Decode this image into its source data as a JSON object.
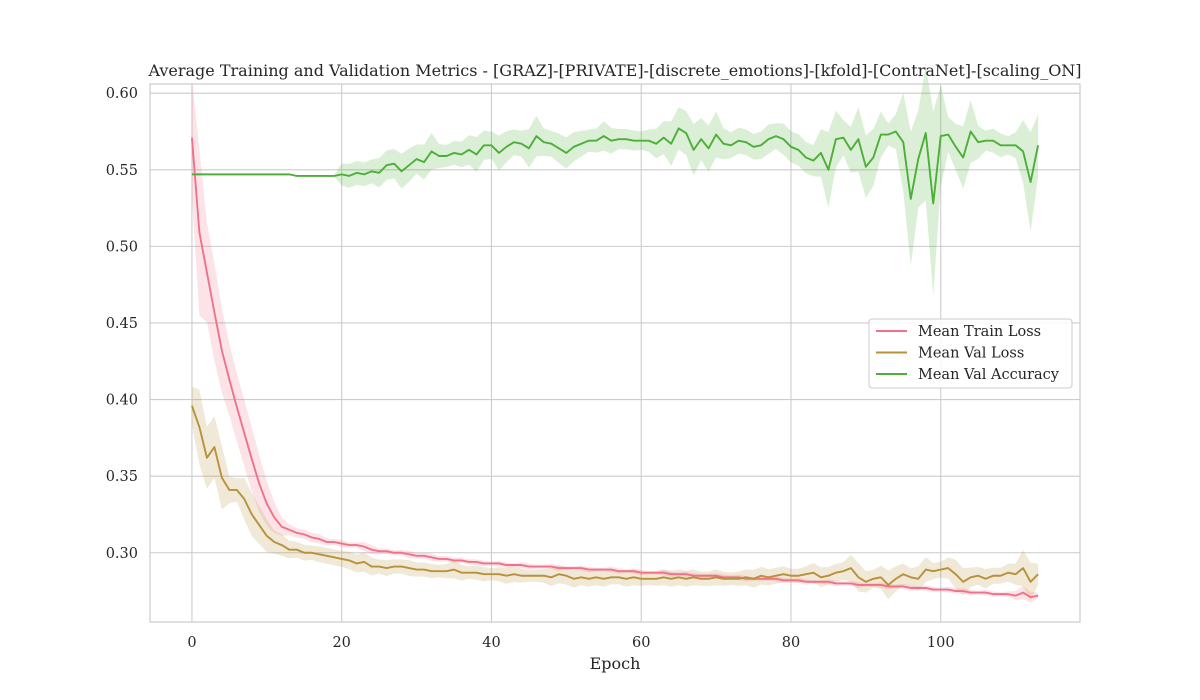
{
  "chart_data": {
    "type": "line",
    "title": "Average Training and Validation Metrics - [GRAZ]-[PRIVATE]-[discrete_emotions]-[kfold]-[ContraNet]-[scaling_ON]",
    "xlabel": "Epoch",
    "ylabel": "",
    "xlim": [
      -5.6,
      118.6
    ],
    "ylim": [
      0.2548,
      0.606
    ],
    "xticks": [
      0,
      20,
      40,
      60,
      80,
      100
    ],
    "yticks": [
      0.3,
      0.35,
      0.4,
      0.45,
      0.5,
      0.55,
      0.6
    ],
    "grid": true,
    "legend_position": "center-right",
    "series": [
      {
        "name": "Mean Train Loss",
        "color": "#f0728a",
        "values": [
          0.571,
          0.509,
          0.483,
          0.457,
          0.432,
          0.413,
          0.395,
          0.378,
          0.361,
          0.345,
          0.332,
          0.323,
          0.317,
          0.315,
          0.313,
          0.312,
          0.31,
          0.309,
          0.307,
          0.307,
          0.306,
          0.305,
          0.305,
          0.304,
          0.302,
          0.301,
          0.301,
          0.3,
          0.3,
          0.299,
          0.298,
          0.298,
          0.297,
          0.296,
          0.296,
          0.295,
          0.295,
          0.294,
          0.294,
          0.293,
          0.293,
          0.293,
          0.292,
          0.292,
          0.292,
          0.291,
          0.291,
          0.291,
          0.291,
          0.29,
          0.29,
          0.29,
          0.29,
          0.289,
          0.289,
          0.289,
          0.289,
          0.288,
          0.288,
          0.288,
          0.287,
          0.287,
          0.287,
          0.287,
          0.286,
          0.286,
          0.286,
          0.285,
          0.285,
          0.285,
          0.285,
          0.284,
          0.284,
          0.284,
          0.283,
          0.283,
          0.283,
          0.283,
          0.283,
          0.282,
          0.282,
          0.282,
          0.281,
          0.281,
          0.281,
          0.281,
          0.28,
          0.28,
          0.28,
          0.279,
          0.279,
          0.279,
          0.279,
          0.278,
          0.278,
          0.278,
          0.277,
          0.277,
          0.277,
          0.276,
          0.276,
          0.276,
          0.275,
          0.275,
          0.274,
          0.274,
          0.274,
          0.273,
          0.273,
          0.273,
          0.272,
          0.274,
          0.271,
          0.272
        ],
        "band": 0.0012
      },
      {
        "name": "Mean Val Loss",
        "color": "#b8913a",
        "values": [
          0.396,
          0.382,
          0.362,
          0.369,
          0.349,
          0.341,
          0.341,
          0.335,
          0.325,
          0.318,
          0.311,
          0.307,
          0.305,
          0.302,
          0.302,
          0.3,
          0.3,
          0.299,
          0.298,
          0.297,
          0.296,
          0.295,
          0.293,
          0.294,
          0.291,
          0.291,
          0.29,
          0.291,
          0.291,
          0.29,
          0.289,
          0.289,
          0.288,
          0.288,
          0.288,
          0.289,
          0.287,
          0.287,
          0.287,
          0.286,
          0.286,
          0.286,
          0.285,
          0.286,
          0.285,
          0.285,
          0.285,
          0.285,
          0.284,
          0.286,
          0.285,
          0.283,
          0.284,
          0.283,
          0.284,
          0.283,
          0.284,
          0.284,
          0.283,
          0.284,
          0.283,
          0.283,
          0.283,
          0.284,
          0.283,
          0.284,
          0.283,
          0.284,
          0.283,
          0.283,
          0.284,
          0.283,
          0.283,
          0.283,
          0.284,
          0.283,
          0.285,
          0.284,
          0.285,
          0.286,
          0.285,
          0.285,
          0.286,
          0.287,
          0.284,
          0.285,
          0.287,
          0.288,
          0.29,
          0.284,
          0.281,
          0.283,
          0.284,
          0.279,
          0.283,
          0.286,
          0.284,
          0.283,
          0.289,
          0.288,
          0.289,
          0.29,
          0.286,
          0.281,
          0.284,
          0.285,
          0.283,
          0.285,
          0.285,
          0.287,
          0.286,
          0.29,
          0.281,
          0.286
        ],
        "band": 0.004
      },
      {
        "name": "Mean Val Accuracy",
        "color": "#4caf37",
        "values": [
          0.547,
          0.547,
          0.547,
          0.547,
          0.547,
          0.547,
          0.547,
          0.547,
          0.547,
          0.547,
          0.547,
          0.547,
          0.547,
          0.547,
          0.546,
          0.546,
          0.546,
          0.546,
          0.546,
          0.546,
          0.547,
          0.546,
          0.548,
          0.547,
          0.549,
          0.548,
          0.553,
          0.554,
          0.549,
          0.553,
          0.557,
          0.555,
          0.562,
          0.559,
          0.559,
          0.561,
          0.56,
          0.563,
          0.56,
          0.566,
          0.566,
          0.561,
          0.565,
          0.568,
          0.567,
          0.564,
          0.572,
          0.568,
          0.567,
          0.564,
          0.561,
          0.565,
          0.567,
          0.569,
          0.569,
          0.572,
          0.569,
          0.57,
          0.57,
          0.569,
          0.569,
          0.569,
          0.567,
          0.571,
          0.567,
          0.577,
          0.574,
          0.563,
          0.57,
          0.564,
          0.573,
          0.567,
          0.566,
          0.569,
          0.568,
          0.565,
          0.566,
          0.57,
          0.572,
          0.57,
          0.565,
          0.563,
          0.558,
          0.556,
          0.561,
          0.55,
          0.57,
          0.571,
          0.563,
          0.57,
          0.552,
          0.558,
          0.573,
          0.573,
          0.575,
          0.568,
          0.531,
          0.557,
          0.574,
          0.528,
          0.572,
          0.573,
          0.565,
          0.558,
          0.575,
          0.568,
          0.569,
          0.569,
          0.566,
          0.566,
          0.566,
          0.562,
          0.542,
          0.566
        ],
        "band": 0.006
      }
    ]
  }
}
